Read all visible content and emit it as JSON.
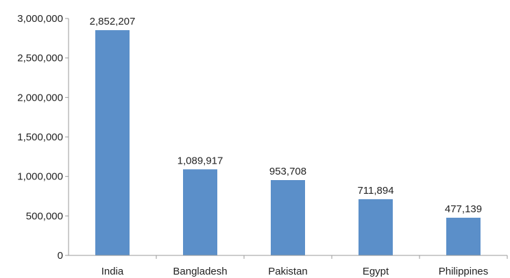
{
  "chart_data": {
    "type": "bar",
    "categories": [
      "India",
      "Bangladesh",
      "Pakistan",
      "Egypt",
      "Philippines"
    ],
    "values": [
      2852207,
      1089917,
      953708,
      711894,
      477139
    ],
    "data_labels": [
      "2,852,207",
      "1,089,917",
      "953,708",
      "711,894",
      "477,139"
    ],
    "ylim": [
      0,
      3000000
    ],
    "yticks": [
      0,
      500000,
      1000000,
      1500000,
      2000000,
      2500000,
      3000000
    ],
    "ytick_labels": [
      "0",
      "500,000",
      "1,000,000",
      "1,500,000",
      "2,000,000",
      "2,500,000",
      "3,000,000"
    ],
    "grid": false,
    "legend": "none",
    "bar_color": "#5b8fc9",
    "title": "",
    "xlabel": "",
    "ylabel": ""
  }
}
